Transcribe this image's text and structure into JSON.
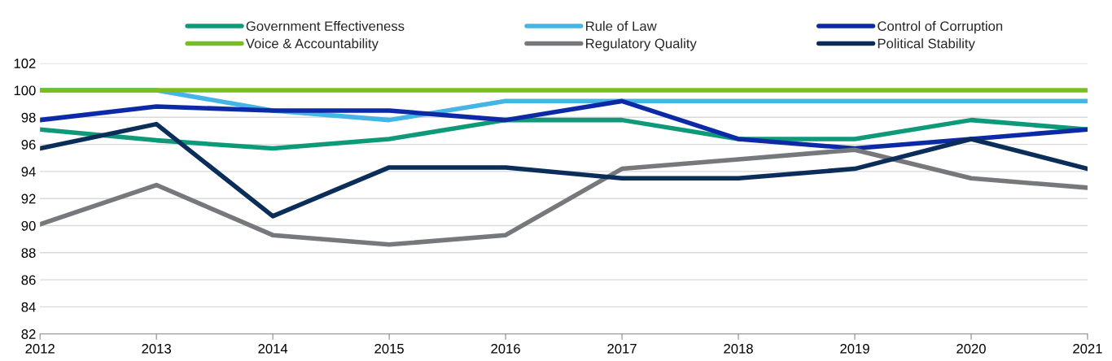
{
  "chart_data": {
    "type": "line",
    "x": [
      2012,
      2013,
      2014,
      2015,
      2016,
      2017,
      2018,
      2019,
      2020,
      2021
    ],
    "xlim": [
      2012,
      2021
    ],
    "xticks": [
      2012,
      2013,
      2014,
      2015,
      2016,
      2017,
      2018,
      2019,
      2020,
      2021
    ],
    "ylim": [
      82,
      102
    ],
    "yticks": [
      82,
      84,
      86,
      88,
      90,
      92,
      94,
      96,
      98,
      100,
      102
    ],
    "grid": "y",
    "legend": "top",
    "marker": "none",
    "line_style": "solid",
    "series": [
      {
        "name": "Government Effectiveness",
        "color": "#0e9a78",
        "values": [
          97.1,
          96.3,
          95.7,
          96.4,
          97.8,
          97.8,
          96.4,
          96.4,
          97.8,
          97.1
        ]
      },
      {
        "name": "Rule of Law",
        "color": "#45b5e6",
        "values": [
          100,
          100,
          98.5,
          97.8,
          99.2,
          99.2,
          99.2,
          99.2,
          99.2,
          99.2
        ]
      },
      {
        "name": "Control of Corruption",
        "color": "#0d2aa6",
        "values": [
          97.8,
          98.8,
          98.5,
          98.5,
          97.8,
          99.2,
          96.4,
          95.7,
          96.4,
          97.1
        ]
      },
      {
        "name": "Voice & Accountability",
        "color": "#78be20",
        "values": [
          100,
          100,
          100,
          100,
          100,
          100,
          100,
          100,
          100,
          100
        ]
      },
      {
        "name": "Regulatory Quality",
        "color": "#76787b",
        "values": [
          90.1,
          93.0,
          89.3,
          88.6,
          89.3,
          94.2,
          94.9,
          95.6,
          93.5,
          92.8
        ]
      },
      {
        "name": "Political Stability",
        "color": "#0b2d5a",
        "values": [
          95.7,
          97.5,
          90.7,
          94.3,
          94.3,
          93.5,
          93.5,
          94.2,
          96.4,
          94.2
        ]
      }
    ]
  }
}
